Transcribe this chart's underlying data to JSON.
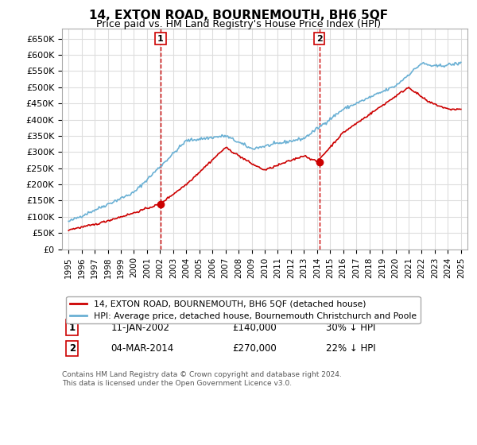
{
  "title": "14, EXTON ROAD, BOURNEMOUTH, BH6 5QF",
  "subtitle": "Price paid vs. HM Land Registry's House Price Index (HPI)",
  "ylabel_ticks": [
    "£0",
    "£50K",
    "£100K",
    "£150K",
    "£200K",
    "£250K",
    "£300K",
    "£350K",
    "£400K",
    "£450K",
    "£500K",
    "£550K",
    "£600K",
    "£650K"
  ],
  "ytick_values": [
    0,
    50000,
    100000,
    150000,
    200000,
    250000,
    300000,
    350000,
    400000,
    450000,
    500000,
    550000,
    600000,
    650000
  ],
  "hpi_color": "#6ab0d4",
  "price_color": "#cc0000",
  "marker1_date": 2002.03,
  "marker1_price": 140000,
  "marker1_label": "11-JAN-2002",
  "marker1_amount": "£140,000",
  "marker1_hpi": "30% ↓ HPI",
  "marker2_date": 2014.17,
  "marker2_price": 270000,
  "marker2_label": "04-MAR-2014",
  "marker2_amount": "£270,000",
  "marker2_hpi": "22% ↓ HPI",
  "legend_line1": "14, EXTON ROAD, BOURNEMOUTH, BH6 5QF (detached house)",
  "legend_line2": "HPI: Average price, detached house, Bournemouth Christchurch and Poole",
  "footnote": "Contains HM Land Registry data © Crown copyright and database right 2024.\nThis data is licensed under the Open Government Licence v3.0.",
  "background_color": "#ffffff",
  "grid_color": "#dddddd",
  "xmin": 1994.5,
  "xmax": 2025.5
}
